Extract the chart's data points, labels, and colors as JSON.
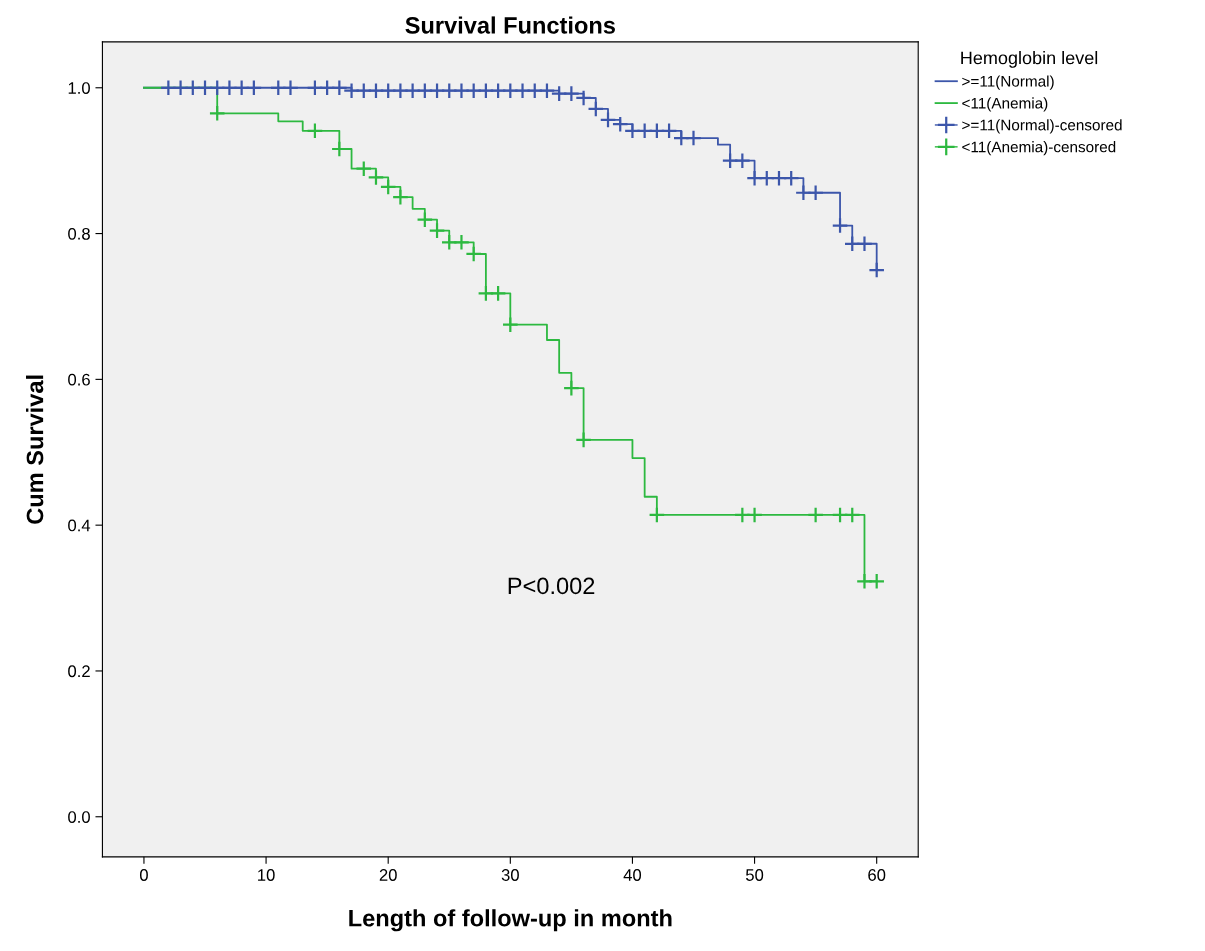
{
  "chart_data": {
    "type": "step",
    "title": "Survival Functions",
    "xlabel": "Length of follow-up in month",
    "ylabel": "Cum Survival",
    "legend_title": "Hemoglobin level",
    "legend": "top right",
    "grid": false,
    "xlim": [
      -3.4,
      63.4
    ],
    "xticks": [
      0,
      10,
      20,
      30,
      40,
      50,
      60
    ],
    "ylim": [
      -0.055,
      1.063
    ],
    "yticks": [
      {
        "value": 0,
        "label": "0.0"
      },
      {
        "value": 0.2,
        "label": "0.2"
      },
      {
        "value": 0.4,
        "label": "0.4"
      },
      {
        "value": 0.6,
        "label": "0.6"
      },
      {
        "value": 0.8,
        "label": "0.8"
      },
      {
        "value": 1,
        "label": "1.0"
      }
    ],
    "annotations": [
      "P<0.002"
    ],
    "series": [
      {
        "name": ">=11(Normal)",
        "color": "#3c56aa",
        "marker": "none",
        "x": [
          0,
          17,
          34,
          36,
          37,
          38,
          39,
          40,
          44,
          47,
          48,
          50,
          54,
          57,
          58,
          60
        ],
        "values": [
          1.0,
          0.996,
          0.992,
          0.986,
          0.971,
          0.956,
          0.95,
          0.941,
          0.931,
          0.922,
          0.9,
          0.876,
          0.856,
          0.811,
          0.786,
          0.75
        ]
      },
      {
        "name": "<11(Anemia)",
        "color": "#2db940",
        "marker": "none",
        "x": [
          0,
          6,
          11,
          13,
          16,
          17,
          19,
          20,
          21,
          22,
          23,
          24,
          25,
          27,
          28,
          30,
          33,
          34,
          35,
          36,
          40,
          41,
          42,
          59,
          60
        ],
        "values": [
          1.0,
          0.965,
          0.954,
          0.941,
          0.916,
          0.889,
          0.877,
          0.864,
          0.85,
          0.834,
          0.819,
          0.804,
          0.788,
          0.772,
          0.718,
          0.675,
          0.654,
          0.609,
          0.588,
          0.517,
          0.492,
          0.439,
          0.414,
          0.323,
          0.323
        ]
      },
      {
        "name": ">=11(Normal)-censored",
        "type": "scatter",
        "color": "#3c56aa",
        "marker": "cross",
        "x": [
          2,
          3,
          4,
          5,
          6,
          7,
          8,
          9,
          11,
          12,
          14,
          15,
          16,
          17,
          18,
          19,
          20,
          21,
          22,
          23,
          24,
          25,
          26,
          27,
          28,
          29,
          30,
          31,
          32,
          33,
          34,
          35,
          36,
          37,
          38,
          39,
          40,
          41,
          42,
          43,
          44,
          45,
          48,
          49,
          50,
          51,
          52,
          53,
          54,
          55,
          57,
          58,
          59,
          60
        ],
        "values": [
          1.0,
          1.0,
          1.0,
          1.0,
          1.0,
          1.0,
          1.0,
          1.0,
          1.0,
          1.0,
          1.0,
          1.0,
          1.0,
          0.996,
          0.996,
          0.996,
          0.996,
          0.996,
          0.996,
          0.996,
          0.996,
          0.996,
          0.996,
          0.996,
          0.996,
          0.996,
          0.996,
          0.996,
          0.996,
          0.996,
          0.992,
          0.992,
          0.986,
          0.971,
          0.956,
          0.95,
          0.941,
          0.941,
          0.941,
          0.941,
          0.931,
          0.931,
          0.9,
          0.9,
          0.876,
          0.876,
          0.876,
          0.876,
          0.856,
          0.856,
          0.811,
          0.786,
          0.786,
          0.75
        ]
      },
      {
        "name": "<11(Anemia)-censored",
        "type": "scatter",
        "color": "#2db940",
        "marker": "cross",
        "x": [
          6,
          14,
          16,
          18,
          19,
          20,
          21,
          23,
          24,
          25,
          26,
          27,
          28,
          29,
          30,
          35,
          36,
          42,
          49,
          50,
          55,
          57,
          58,
          59,
          60
        ],
        "values": [
          0.965,
          0.941,
          0.916,
          0.889,
          0.877,
          0.864,
          0.85,
          0.819,
          0.804,
          0.788,
          0.788,
          0.772,
          0.718,
          0.718,
          0.675,
          0.588,
          0.517,
          0.414,
          0.414,
          0.414,
          0.414,
          0.414,
          0.414,
          0.323,
          0.323
        ]
      }
    ]
  }
}
